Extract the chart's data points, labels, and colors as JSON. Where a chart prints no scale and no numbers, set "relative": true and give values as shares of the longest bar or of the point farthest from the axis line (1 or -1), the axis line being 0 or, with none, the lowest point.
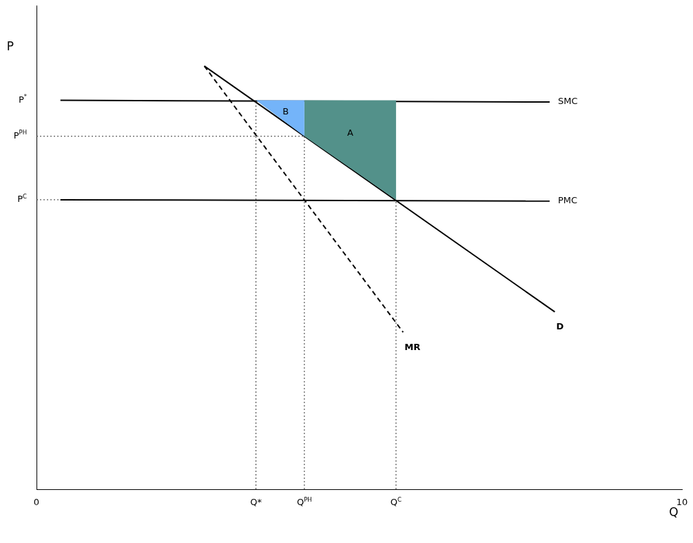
{
  "chart_data": {
    "type": "line",
    "xlabel": "Q",
    "ylabel": "P",
    "xlim": [
      0,
      10
    ],
    "relative": true,
    "xticks": [
      0,
      {
        "value": 3.4,
        "label": "Q*"
      },
      {
        "value": 4.15,
        "label": "Q$^{PH}$"
      },
      {
        "value": 5.57,
        "label": "Q$^{C}$"
      },
      10
    ],
    "grid": false,
    "legend": false,
    "marker": "none",
    "series": [
      {
        "type": "area",
        "color": "#74b4f9",
        "x": [
          3.4,
          4.15,
          4.15,
          3.4
        ],
        "values": [
          0.919,
          0.919,
          0.834,
          0.919
        ]
      },
      {
        "type": "area",
        "color": "#53918a",
        "x": [
          4.15,
          5.57,
          5.57,
          4.15,
          4.15
        ],
        "values": [
          0.919,
          0.919,
          0.684,
          0.834,
          0.919
        ]
      },
      {
        "type": "line",
        "line_style": "dotted",
        "color": "#333333",
        "x": [
          3.4,
          3.4
        ],
        "values": [
          0,
          0.919
        ]
      },
      {
        "type": "line",
        "line_style": "dotted",
        "color": "#333333",
        "x": [
          4.15,
          4.15
        ],
        "values": [
          0,
          0.834
        ]
      },
      {
        "type": "line",
        "line_style": "dotted",
        "color": "#333333",
        "x": [
          5.57,
          5.57
        ],
        "values": [
          0,
          0.684
        ]
      },
      {
        "type": "line",
        "line_style": "dotted",
        "color": "#333333",
        "x": [
          0,
          4.15
        ],
        "values": [
          0.834,
          0.834
        ]
      },
      {
        "type": "line",
        "line_style": "dotted",
        "color": "#333333",
        "x": [
          0,
          0.37
        ],
        "values": [
          0.684,
          0.684
        ]
      },
      {
        "type": "line",
        "name": "SMC",
        "color": "#000000",
        "x": [
          0.37,
          7.95
        ],
        "values": [
          0.919,
          0.915
        ]
      },
      {
        "type": "line",
        "name": "PMC",
        "color": "#000000",
        "x": [
          0.37,
          7.95
        ],
        "values": [
          0.684,
          0.681
        ]
      },
      {
        "type": "line",
        "name": "D",
        "color": "#000000",
        "x": [
          2.6,
          8.03
        ],
        "values": [
          1.0,
          0.419
        ]
      },
      {
        "type": "line",
        "name": "MR",
        "line_style": "dashed",
        "color": "#000000",
        "x": [
          2.6,
          5.68
        ],
        "values": [
          1.0,
          0.371
        ]
      }
    ],
    "annotations": [
      "B",
      "A",
      "P$^{*}$",
      {
        "text": "P$^{PH}$",
        "x": 0,
        "y": 0.834
      },
      {
        "text": "P$^{C}$",
        "x": 0,
        "y": 0.684
      }
    ]
  }
}
